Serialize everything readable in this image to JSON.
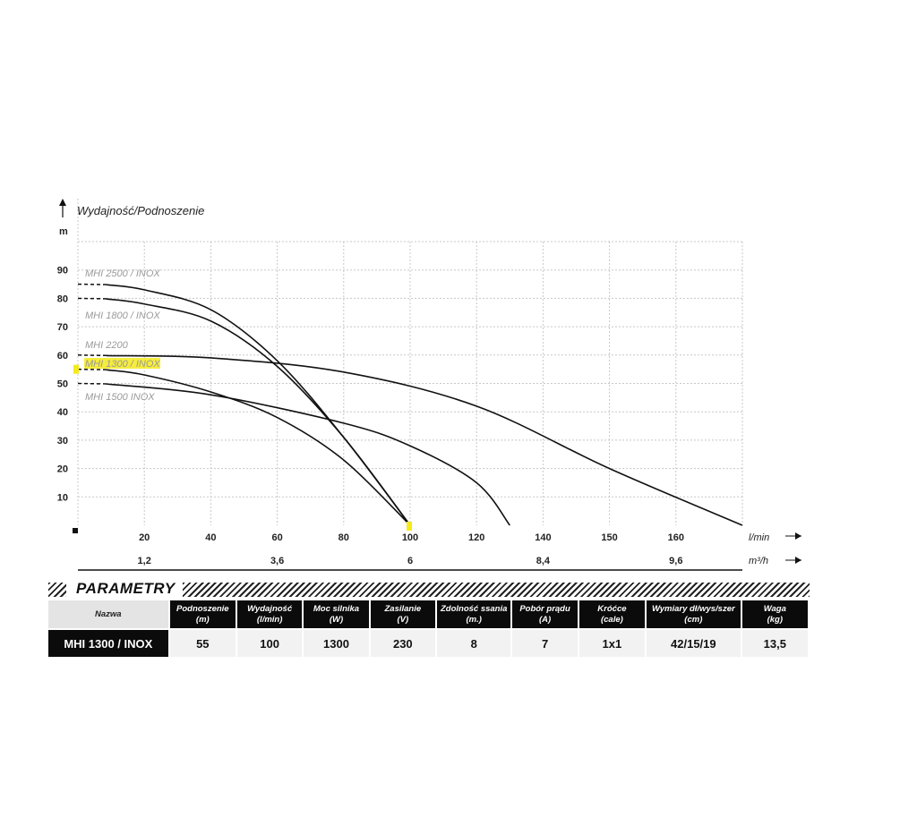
{
  "colors": {
    "curve": "#111111",
    "grid": "#c8c8c8",
    "label": "#9a9a9a",
    "highlight": "#f5ea1a",
    "header_bg": "#0b0b0b"
  },
  "chart_data": {
    "type": "line",
    "title": "Wydajność/Podnoszenie",
    "ylabel": "m",
    "xlabel": "l/min",
    "x2label": "m³/h",
    "ylim": [
      0,
      100
    ],
    "xlim": [
      0,
      200
    ],
    "yticks": [
      "10",
      "20",
      "30",
      "40",
      "50",
      "60",
      "70",
      "80",
      "90"
    ],
    "xticks": [
      "20",
      "40",
      "60",
      "80",
      "100",
      "120",
      "140",
      "150",
      "160"
    ],
    "x2ticks": [
      "1,2",
      "3,6",
      "6",
      "8,4",
      "9,6"
    ],
    "grid": true,
    "series": [
      {
        "name": "MHI 2500 / INOX",
        "highlighted": false,
        "points": [
          [
            0,
            85
          ],
          [
            20,
            83
          ],
          [
            40,
            76
          ],
          [
            60,
            58
          ],
          [
            80,
            31
          ],
          [
            100,
            0
          ]
        ]
      },
      {
        "name": "MHI 1800 / INOX",
        "highlighted": false,
        "points": [
          [
            0,
            80
          ],
          [
            20,
            78
          ],
          [
            40,
            72
          ],
          [
            60,
            56
          ],
          [
            80,
            31
          ],
          [
            100,
            0
          ]
        ]
      },
      {
        "name": "MHI 2200",
        "highlighted": false,
        "points": [
          [
            0,
            60
          ],
          [
            40,
            59
          ],
          [
            80,
            54
          ],
          [
            120,
            42
          ],
          [
            160,
            20
          ],
          [
            200,
            0
          ]
        ]
      },
      {
        "name": "MHI 1300 / INOX",
        "highlighted": true,
        "points": [
          [
            0,
            55
          ],
          [
            20,
            53
          ],
          [
            40,
            47
          ],
          [
            60,
            38
          ],
          [
            80,
            23
          ],
          [
            100,
            0
          ]
        ]
      },
      {
        "name": "MHI 1500 INOX",
        "highlighted": false,
        "points": [
          [
            0,
            50
          ],
          [
            40,
            46
          ],
          [
            80,
            36
          ],
          [
            100,
            28
          ],
          [
            120,
            15
          ],
          [
            130,
            0
          ]
        ]
      }
    ]
  },
  "params": {
    "title": "PARAMETRY",
    "columns": [
      {
        "label": "Nazwa",
        "unit": ""
      },
      {
        "label": "Podnoszenie",
        "unit": "(m)"
      },
      {
        "label": "Wydajność",
        "unit": "(l/min)"
      },
      {
        "label": "Moc silnika",
        "unit": "(W)"
      },
      {
        "label": "Zasilanie",
        "unit": "(V)"
      },
      {
        "label": "Zdolność ssania",
        "unit": "(m.)"
      },
      {
        "label": "Pobór prądu",
        "unit": "(A)"
      },
      {
        "label": "Króćce",
        "unit": "(cale)"
      },
      {
        "label": "Wymiary dł/wys/szer",
        "unit": "(cm)"
      },
      {
        "label": "Waga",
        "unit": "(kg)"
      }
    ],
    "row": [
      "MHI 1300 / INOX",
      "55",
      "100",
      "1300",
      "230",
      "8",
      "7",
      "1x1",
      "42/15/19",
      "13,5"
    ]
  }
}
